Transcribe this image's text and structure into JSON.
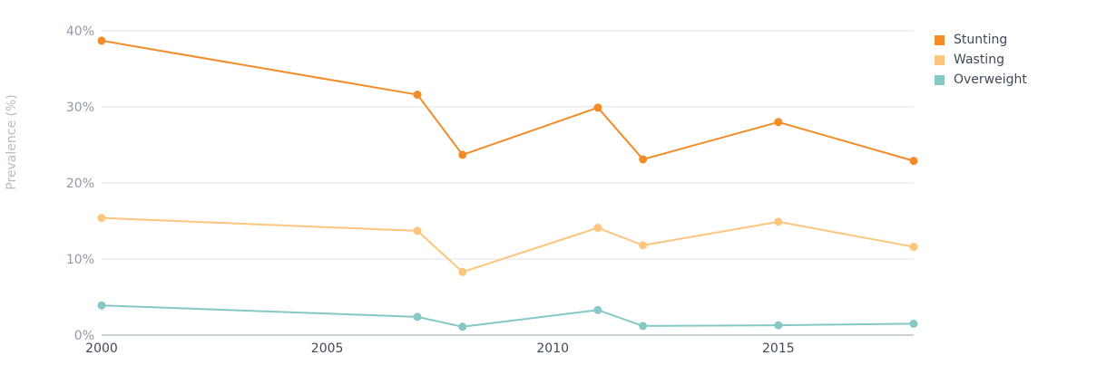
{
  "chart_data": {
    "type": "line",
    "title": "",
    "xlabel": "",
    "ylabel": "Prevalence (%)",
    "x": [
      2000,
      2007,
      2008,
      2011,
      2012,
      2015,
      2018
    ],
    "xlim": [
      2000,
      2018
    ],
    "ylim": [
      0,
      40
    ],
    "x_ticks": [
      "2000",
      "2005",
      "2010",
      "2015"
    ],
    "y_ticks": [
      "0%",
      "10%",
      "20%",
      "30%",
      "40%"
    ],
    "grid": "horizontal",
    "legend_position": "top-right",
    "series": [
      {
        "name": "Stunting",
        "color": "#f28c28",
        "values": [
          38.7,
          31.6,
          23.7,
          29.9,
          23.1,
          28.0,
          22.9
        ]
      },
      {
        "name": "Wasting",
        "color": "#fdc57d",
        "values": [
          15.4,
          13.7,
          8.3,
          14.1,
          11.8,
          14.9,
          11.6
        ]
      },
      {
        "name": "Overweight",
        "color": "#86c9c4",
        "values": [
          3.9,
          2.4,
          1.1,
          3.3,
          1.2,
          1.3,
          1.5
        ]
      }
    ]
  }
}
